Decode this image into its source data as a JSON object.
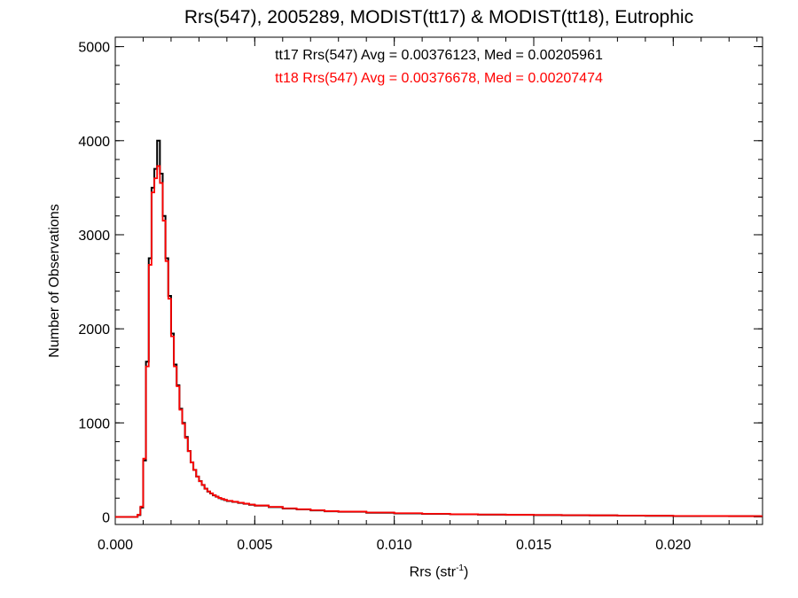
{
  "chart_data": {
    "type": "line",
    "title": "Rrs(547), 2005289, MODIST(tt17) & MODIST(tt18), Eutrophic",
    "xlabel_base": "Rrs (str",
    "xlabel_exp": "-1",
    "xlabel_close": ")",
    "ylabel": "Number of Observations",
    "xlim": [
      0.0,
      0.0232
    ],
    "ylim": [
      -80,
      5100
    ],
    "xticks": [
      0.0,
      0.005,
      0.01,
      0.015,
      0.02
    ],
    "xtick_labels": [
      "0.000",
      "0.005",
      "0.010",
      "0.015",
      "0.020"
    ],
    "yticks": [
      0,
      1000,
      2000,
      3000,
      4000,
      5000
    ],
    "ytick_labels": [
      "0",
      "1000",
      "2000",
      "3000",
      "4000",
      "5000"
    ],
    "annotations": [
      {
        "text": "tt17 Rrs(547) Avg = 0.00376123, Med = 0.00205961",
        "color": "#000000"
      },
      {
        "text": "tt18 Rrs(547) Avg = 0.00376678, Med = 0.00207474",
        "color": "#ff0000"
      }
    ],
    "bin_width": 0.0001,
    "series": [
      {
        "color": "#000000",
        "x": [
          0.0,
          0.0001,
          0.0002,
          0.0003,
          0.0004,
          0.0005,
          0.0006,
          0.0007,
          0.0008,
          0.0009,
          0.001,
          0.0011,
          0.0012,
          0.0013,
          0.0014,
          0.0015,
          0.0016,
          0.0017,
          0.0018,
          0.0019,
          0.002,
          0.0021,
          0.0022,
          0.0023,
          0.0024,
          0.0025,
          0.0026,
          0.0027,
          0.0028,
          0.0029,
          0.003,
          0.0031,
          0.0032,
          0.0033,
          0.0034,
          0.0035,
          0.0036,
          0.0037,
          0.0038,
          0.0039,
          0.004,
          0.0042,
          0.0044,
          0.0046,
          0.0048,
          0.005,
          0.0055,
          0.006,
          0.0065,
          0.007,
          0.0075,
          0.008,
          0.009,
          0.01,
          0.011,
          0.012,
          0.013,
          0.014,
          0.015,
          0.016,
          0.017,
          0.018,
          0.019,
          0.02,
          0.021,
          0.022,
          0.0231
        ],
        "values": [
          0,
          0,
          0,
          0,
          0,
          0,
          0,
          0,
          20,
          100,
          600,
          1650,
          2750,
          3500,
          3700,
          4000,
          3650,
          3200,
          2750,
          2350,
          1950,
          1620,
          1400,
          1150,
          1000,
          850,
          700,
          580,
          500,
          430,
          380,
          340,
          300,
          270,
          250,
          230,
          215,
          200,
          190,
          180,
          170,
          160,
          150,
          140,
          130,
          120,
          105,
          90,
          80,
          70,
          60,
          55,
          45,
          38,
          33,
          28,
          25,
          22,
          20,
          18,
          16,
          14,
          12,
          10,
          9,
          8,
          7
        ]
      },
      {
        "color": "#ff0000",
        "x": [
          0.0,
          0.0001,
          0.0002,
          0.0003,
          0.0004,
          0.0005,
          0.0006,
          0.0007,
          0.0008,
          0.0009,
          0.001,
          0.0011,
          0.0012,
          0.0013,
          0.0014,
          0.0015,
          0.0016,
          0.0017,
          0.0018,
          0.0019,
          0.002,
          0.0021,
          0.0022,
          0.0023,
          0.0024,
          0.0025,
          0.0026,
          0.0027,
          0.0028,
          0.0029,
          0.003,
          0.0031,
          0.0032,
          0.0033,
          0.0034,
          0.0035,
          0.0036,
          0.0037,
          0.0038,
          0.0039,
          0.004,
          0.0042,
          0.0044,
          0.0046,
          0.0048,
          0.005,
          0.0055,
          0.006,
          0.0065,
          0.007,
          0.0075,
          0.008,
          0.009,
          0.01,
          0.011,
          0.012,
          0.013,
          0.014,
          0.015,
          0.016,
          0.017,
          0.018,
          0.019,
          0.02,
          0.021,
          0.022,
          0.0231
        ],
        "values": [
          0,
          0,
          0,
          0,
          0,
          0,
          0,
          0,
          25,
          110,
          620,
          1600,
          2680,
          3450,
          3600,
          3730,
          3550,
          3150,
          2720,
          2320,
          1920,
          1600,
          1390,
          1140,
          990,
          840,
          700,
          580,
          500,
          430,
          380,
          340,
          300,
          272,
          252,
          232,
          217,
          202,
          192,
          182,
          172,
          162,
          152,
          142,
          132,
          122,
          107,
          92,
          82,
          72,
          62,
          57,
          47,
          40,
          34,
          29,
          26,
          23,
          21,
          19,
          17,
          15,
          13,
          11,
          10,
          9,
          8
        ]
      }
    ]
  }
}
